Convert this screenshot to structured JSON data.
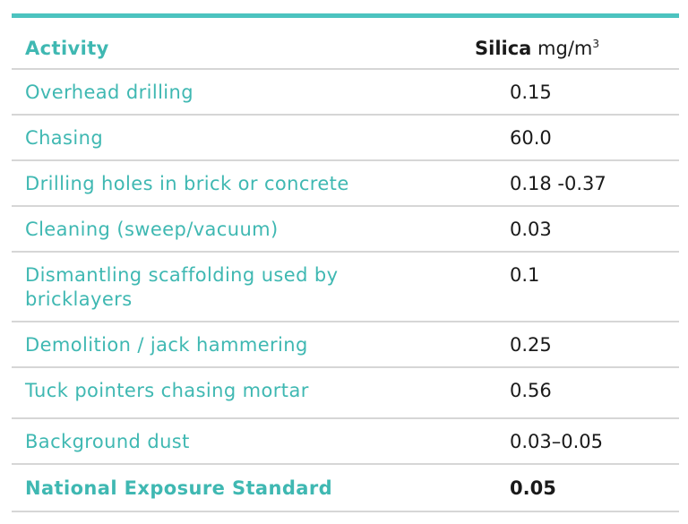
{
  "table": {
    "header": {
      "activity": "Activity",
      "silica_label": "Silica",
      "unit": "mg/m",
      "unit_sup": "3"
    },
    "rows": [
      {
        "activity": "Overhead drilling",
        "value": "0.15"
      },
      {
        "activity": "Chasing",
        "value": "60.0"
      },
      {
        "activity": "Drilling holes in brick or concrete",
        "value": "0.18 -0.37"
      },
      {
        "activity": "Cleaning (sweep/vacuum)",
        "value": "0.03"
      },
      {
        "activity": "Dismantling scaffolding used by",
        "activity_line2": "bricklayers",
        "value": "0.1"
      },
      {
        "activity": "Demolition / jack hammering",
        "value": "0.25"
      },
      {
        "activity": "Tuck pointers chasing mortar",
        "value": "0.56"
      },
      {
        "activity": "Background dust",
        "value": "0.03–0.05"
      }
    ],
    "footer": {
      "activity": "National Exposure Standard",
      "value": "0.05"
    },
    "colors": {
      "accent": "#4cc3bf",
      "activity_text": "#3fb8b2",
      "value_text": "#1a1a1a",
      "divider": "#d6d6d6"
    }
  }
}
